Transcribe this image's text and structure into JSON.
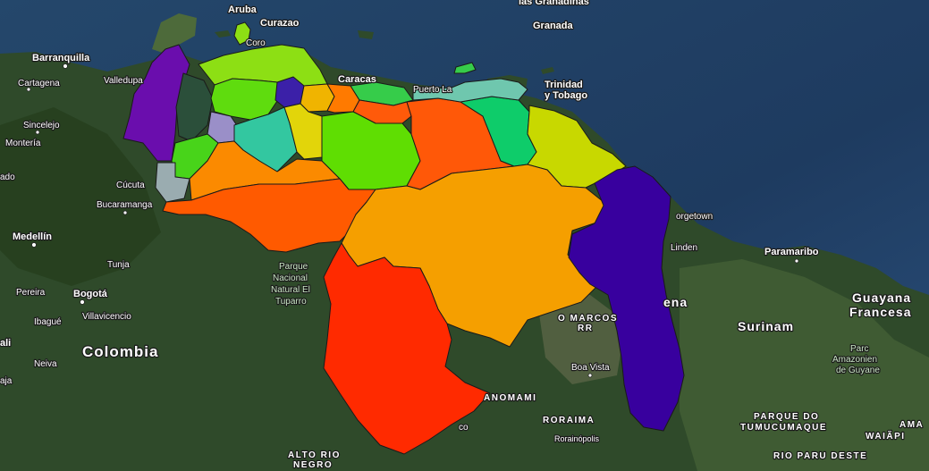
{
  "colors": {
    "zulia": "#6a0dad",
    "falcon": "#8ddf14",
    "lara": "#5fdc0e",
    "yaracuy": "#3b20a8",
    "carabobo": "#f0b400",
    "aragua": "#ff7a00",
    "miranda": "#ff5a0a",
    "vargas_dc": "#36cc4a",
    "trujillo": "#9a8fc8",
    "merida": "#48d41a",
    "tachira": "#9aacb0",
    "barinas": "#fb8a00",
    "portuguesa": "#33c7a0",
    "cojedes": "#e2d50a",
    "guarico": "#5fde02",
    "anzoategui": "#ff5808",
    "monagas": "#0ecc6a",
    "sucre": "#6fc7ae",
    "delta_amacuro": "#c8d800",
    "apure": "#ff5a00",
    "bolivar": "#f59f00",
    "amazonas": "#ff2a00",
    "guayana_esequiba": "#38009e",
    "lake": "#2b4f3a",
    "aruba_curacao": "#8ddf14"
  },
  "labels": {
    "aruba": "Aruba",
    "curazao": "Curazao",
    "coro": "Coro",
    "granadinas": "las Granadinas",
    "granada": "Granada",
    "barranquilla": "Barranquilla",
    "cartagena": "Cartagena",
    "valledupar": "Valledupa",
    "caracas": "Caracas",
    "puerto_la_cruz": "Puerto La",
    "trinidad_1": "Trinidad",
    "trinidad_2": "y Tobago",
    "sincelejo": "Sincelejo",
    "monteria": "Montería",
    "cucuta": "Cúcuta",
    "bucaramanga": "Bucaramanga",
    "medellin": "Medellín",
    "tunja": "Tunja",
    "pereira": "Pereira",
    "bogota": "Bogotá",
    "ibague": "Ibagué",
    "villavicencio": "Villavicencio",
    "neiva": "Neiva",
    "colombia": "Colombia",
    "parque_1": "Parque",
    "parque_2": "Nacional",
    "parque_3": "Natural El",
    "parque_4": "Tuparro",
    "georgetown": "orgetown",
    "linden": "Linden",
    "guyana_partial": "ena",
    "paramaribo": "Paramaribo",
    "surinam": "Surinam",
    "guayana_francesa_1": "Guayana",
    "guayana_francesa_2": "Francesa",
    "parc_1": "Parc",
    "parc_2": "Amazonien",
    "parc_3": "de Guyane",
    "marcos_1": "O MARCOS",
    "marcos_2": "RR",
    "boa_vista": "Boa Vista",
    "yanomami": "ANOMAMI",
    "roraima": "RORAIMA",
    "rorainopolis": "Rorainópolis",
    "tumucumaque_1": "PARQUE DO",
    "tumucumaque_2": "TUMUCUMAQUE",
    "rio_paru": "RIO PARU DESTE",
    "ama": "AMA",
    "waiapi": "WAIÃPI",
    "alto_rio_1": "ALTO RIO",
    "alto_rio_2": "NEGRO",
    "reco": "co",
    "edge_ali": "ali",
    "edge_aja": "aja",
    "edge_ado": "ado"
  }
}
